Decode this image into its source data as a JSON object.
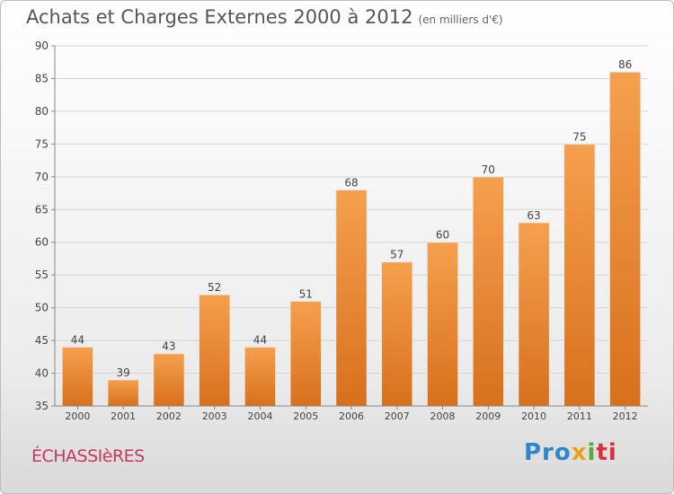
{
  "header": {
    "title": "Achats et Charges Externes 2000 à 2012",
    "subtitle": "(en milliers d'€)"
  },
  "footer": {
    "town": "ÉCHASSIèRES",
    "logo": {
      "p": "Pro",
      "x": "x",
      "i": "i",
      "ti": "ti"
    }
  },
  "colors": {
    "bar_top": "#f5a04e",
    "bar_bottom": "#d8701c",
    "axis": "#888888",
    "grid": "#d4d4d4",
    "label": "#444444"
  },
  "chart_data": {
    "type": "bar",
    "title": "Achats et Charges Externes 2000 à 2012",
    "subtitle": "(en milliers d'€)",
    "categories": [
      "2000",
      "2001",
      "2002",
      "2003",
      "2004",
      "2005",
      "2006",
      "2007",
      "2008",
      "2009",
      "2010",
      "2011",
      "2012"
    ],
    "values": [
      44,
      39,
      43,
      52,
      44,
      51,
      68,
      57,
      60,
      70,
      63,
      75,
      86
    ],
    "ylim": [
      35,
      90
    ],
    "yticks": [
      35,
      40,
      45,
      50,
      55,
      60,
      65,
      70,
      75,
      80,
      85,
      90
    ],
    "grid": true,
    "data_labels": true
  }
}
